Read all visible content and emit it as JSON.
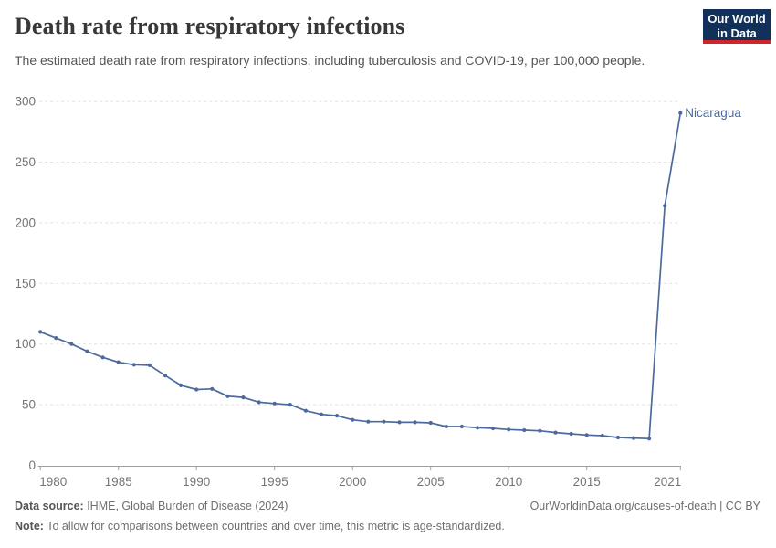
{
  "header": {
    "title": "Death rate from respiratory infections",
    "subtitle": "The estimated death rate from respiratory infections, including tuberculosis and COVID-19, per 100,000 people.",
    "logo": {
      "line1": "Our World",
      "line2": "in Data",
      "bg_color": "#12315a",
      "accent_color": "#d0252b"
    }
  },
  "chart_data": {
    "type": "line",
    "title": "Death rate from respiratory infections",
    "xlabel": "",
    "ylabel": "",
    "xlim": [
      1980,
      2021
    ],
    "ylim": [
      0,
      300
    ],
    "x_ticks": [
      "1980",
      "1985",
      "1990",
      "1995",
      "2000",
      "2005",
      "2010",
      "2015",
      "2021"
    ],
    "y_ticks": [
      0,
      50,
      100,
      150,
      200,
      250,
      300
    ],
    "grid": "horizontal-dashed",
    "legend_position": "end-of-line-label",
    "series": [
      {
        "name": "Nicaragua",
        "color": "#4c6a9c",
        "x": [
          1980,
          1981,
          1982,
          1983,
          1984,
          1985,
          1986,
          1987,
          1988,
          1989,
          1990,
          1991,
          1992,
          1993,
          1994,
          1995,
          1996,
          1997,
          1998,
          1999,
          2000,
          2001,
          2002,
          2003,
          2004,
          2005,
          2006,
          2007,
          2008,
          2009,
          2010,
          2011,
          2012,
          2013,
          2014,
          2015,
          2016,
          2017,
          2018,
          2019,
          2020,
          2021
        ],
        "values": [
          110,
          105,
          100,
          94,
          89,
          85,
          83,
          82.5,
          74,
          66,
          62.5,
          63,
          57,
          56,
          52,
          51,
          50,
          45,
          42,
          41,
          37.5,
          36,
          36,
          35.5,
          35.5,
          35,
          32,
          32,
          31,
          30.5,
          29.5,
          29,
          28.5,
          27,
          26,
          25,
          24.5,
          23,
          22.5,
          22,
          214,
          290.5
        ]
      }
    ],
    "colors": {
      "line": "#4c6a9c",
      "entity_label": "#4c6a9c",
      "grid": "#e1e1e1",
      "axis": "#9e9e9e",
      "tick_text": "#757575"
    }
  },
  "footer": {
    "data_source_label": "Data source:",
    "data_source": " IHME, Global Burden of Disease (2024)",
    "link": "OurWorldinData.org/causes-of-death | CC BY",
    "note_label": "Note:",
    "note": " To allow for comparisons between countries and over time, this metric is age-standardized."
  }
}
